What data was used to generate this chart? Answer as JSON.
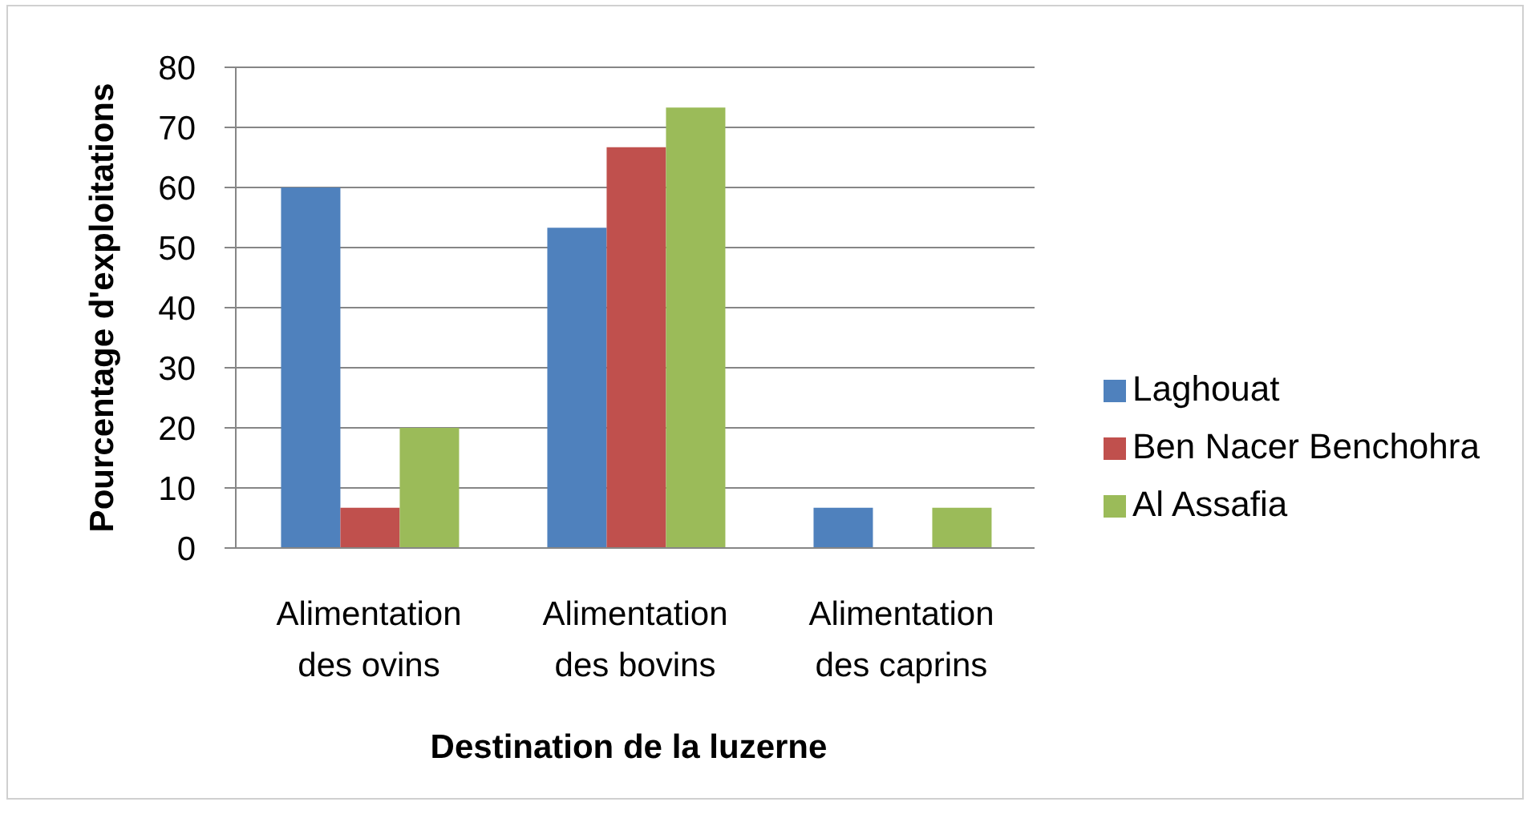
{
  "chart_data": {
    "type": "bar",
    "xlabel": "Destination de la luzerne",
    "ylabel": "Pourcentage d'exploitations",
    "categories": [
      "Alimentation des ovins",
      "Alimentation des bovins",
      "Alimentation des caprins"
    ],
    "series": [
      {
        "name": "Laghouat",
        "color": "#4f81bd",
        "values": [
          60,
          53.3,
          6.7
        ]
      },
      {
        "name": "Ben Nacer Benchohra",
        "color": "#c0504d",
        "values": [
          6.7,
          66.7,
          0
        ]
      },
      {
        "name": "Al Assafia",
        "color": "#9bbb59",
        "values": [
          20,
          73.3,
          6.7
        ]
      }
    ],
    "ylim": [
      0,
      80
    ],
    "yticks": [
      0,
      10,
      20,
      30,
      40,
      50,
      60,
      70,
      80
    ],
    "grid": "y",
    "legend": "right"
  }
}
